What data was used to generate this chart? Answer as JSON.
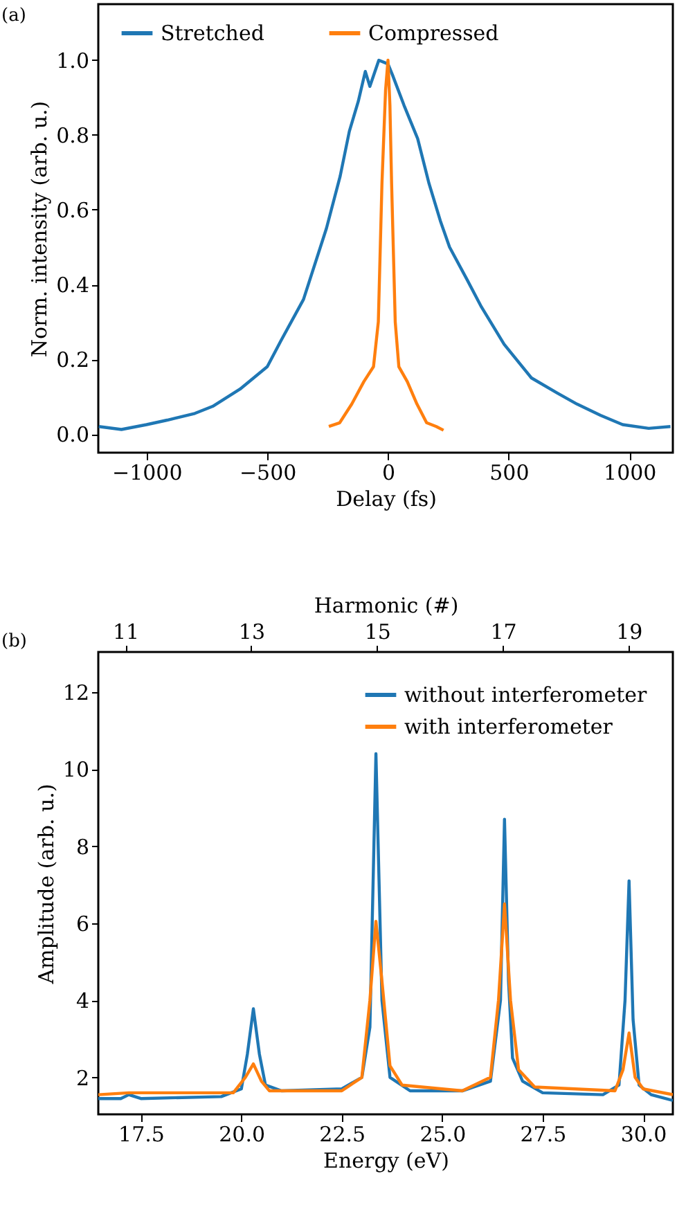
{
  "chart_data": [
    {
      "type": "line",
      "title": "(a)",
      "xlabel": "Delay (fs)",
      "ylabel": "Norm. intensity (arb. u.)",
      "xlim": [
        -1200,
        1180
      ],
      "ylim": [
        -0.05,
        1.15
      ],
      "xticks": [
        {
          "value": -1000,
          "label": "−1000"
        },
        {
          "value": -500,
          "label": "−500"
        },
        0,
        500,
        1000
      ],
      "yticks": [
        {
          "value": 0,
          "label": "0.0"
        },
        0.2,
        0.4,
        0.6,
        0.8,
        {
          "value": 1,
          "label": "1.0"
        }
      ],
      "grid": false,
      "legend": "top",
      "line_style": "solid",
      "marker": "none",
      "series": [
        {
          "name": "Stretched",
          "color": "#1f77b4",
          "x": [
            -1198,
            -1104,
            -1000,
            -915,
            -800,
            -726,
            -613,
            -500,
            -443,
            -350,
            -255,
            -198,
            -160,
            -123,
            -94,
            -75,
            -38,
            0,
            19,
            66,
            123,
            170,
            217,
            255,
            330,
            387,
            481,
            594,
            700,
            783,
            880,
            972,
            1080,
            1170
          ],
          "values": [
            0.02,
            0.012,
            0.025,
            0.037,
            0.055,
            0.074,
            0.12,
            0.18,
            0.25,
            0.36,
            0.55,
            0.69,
            0.81,
            0.89,
            0.97,
            0.93,
            1.0,
            0.99,
            0.96,
            0.88,
            0.79,
            0.67,
            0.57,
            0.5,
            0.41,
            0.34,
            0.24,
            0.15,
            0.11,
            0.08,
            0.05,
            0.025,
            0.015,
            0.02
          ]
        },
        {
          "name": "Compressed",
          "color": "#ff7f0e",
          "x": [
            -245,
            -200,
            -150,
            -100,
            -60,
            -40,
            -25,
            -10,
            0,
            8,
            15,
            30,
            45,
            80,
            120,
            160,
            200,
            230
          ],
          "values": [
            0.02,
            0.03,
            0.08,
            0.14,
            0.18,
            0.3,
            0.67,
            0.92,
            1.0,
            0.88,
            0.67,
            0.3,
            0.18,
            0.14,
            0.08,
            0.03,
            0.02,
            0.01
          ]
        }
      ]
    },
    {
      "type": "line",
      "title": "(b)",
      "xlabel": "Energy (eV)",
      "ylabel": "Amplitude (arb. u.)",
      "x2label": "Harmonic (#)",
      "xlim": [
        16.44,
        30.74
      ],
      "ylim": [
        1.04,
        13.04
      ],
      "x2lim": [
        10.57,
        19.7
      ],
      "xticks": [
        17.5,
        {
          "value": 20,
          "label": "20.0"
        },
        22.5,
        {
          "value": 25,
          "label": "25.0"
        },
        27.5,
        {
          "value": 30,
          "label": "30.0"
        }
      ],
      "yticks": [
        2,
        4,
        6,
        8,
        10,
        12
      ],
      "x2ticks": [
        11,
        13,
        15,
        17,
        19
      ],
      "grid": false,
      "legend": "top right",
      "line_style": "solid",
      "marker": "none",
      "series": [
        {
          "name": "without interferometer",
          "color": "#1f77b4",
          "x": [
            16.44,
            17.0,
            17.2,
            17.5,
            19.5,
            20.0,
            20.15,
            20.3,
            20.45,
            20.6,
            21.0,
            22.5,
            23.0,
            23.2,
            23.35,
            23.5,
            23.7,
            24.2,
            25.5,
            26.2,
            26.45,
            26.55,
            26.65,
            26.75,
            27.0,
            27.5,
            29.0,
            29.4,
            29.55,
            29.65,
            29.75,
            29.9,
            30.2,
            30.74
          ],
          "values": [
            1.45,
            1.45,
            1.55,
            1.45,
            1.5,
            1.7,
            2.6,
            3.78,
            2.6,
            1.8,
            1.65,
            1.7,
            2.0,
            3.3,
            10.4,
            4.0,
            2.0,
            1.65,
            1.65,
            1.9,
            4.0,
            8.7,
            4.5,
            2.5,
            1.9,
            1.6,
            1.55,
            1.8,
            4.0,
            7.1,
            3.5,
            1.8,
            1.55,
            1.4
          ]
        },
        {
          "name": "with interferometer",
          "color": "#ff7f0e",
          "x": [
            16.44,
            17.2,
            19.8,
            20.1,
            20.3,
            20.5,
            20.7,
            22.5,
            23.0,
            23.2,
            23.35,
            23.5,
            23.7,
            24.0,
            25.5,
            26.2,
            26.4,
            26.55,
            26.7,
            26.9,
            27.3,
            29.3,
            29.5,
            29.65,
            29.8,
            30.0,
            30.74
          ],
          "values": [
            1.55,
            1.6,
            1.6,
            2.0,
            2.35,
            1.9,
            1.65,
            1.65,
            2.0,
            4.0,
            6.05,
            4.5,
            2.3,
            1.8,
            1.65,
            2.0,
            4.0,
            6.5,
            4.0,
            2.2,
            1.75,
            1.65,
            2.2,
            3.15,
            2.0,
            1.7,
            1.55
          ]
        }
      ]
    }
  ]
}
